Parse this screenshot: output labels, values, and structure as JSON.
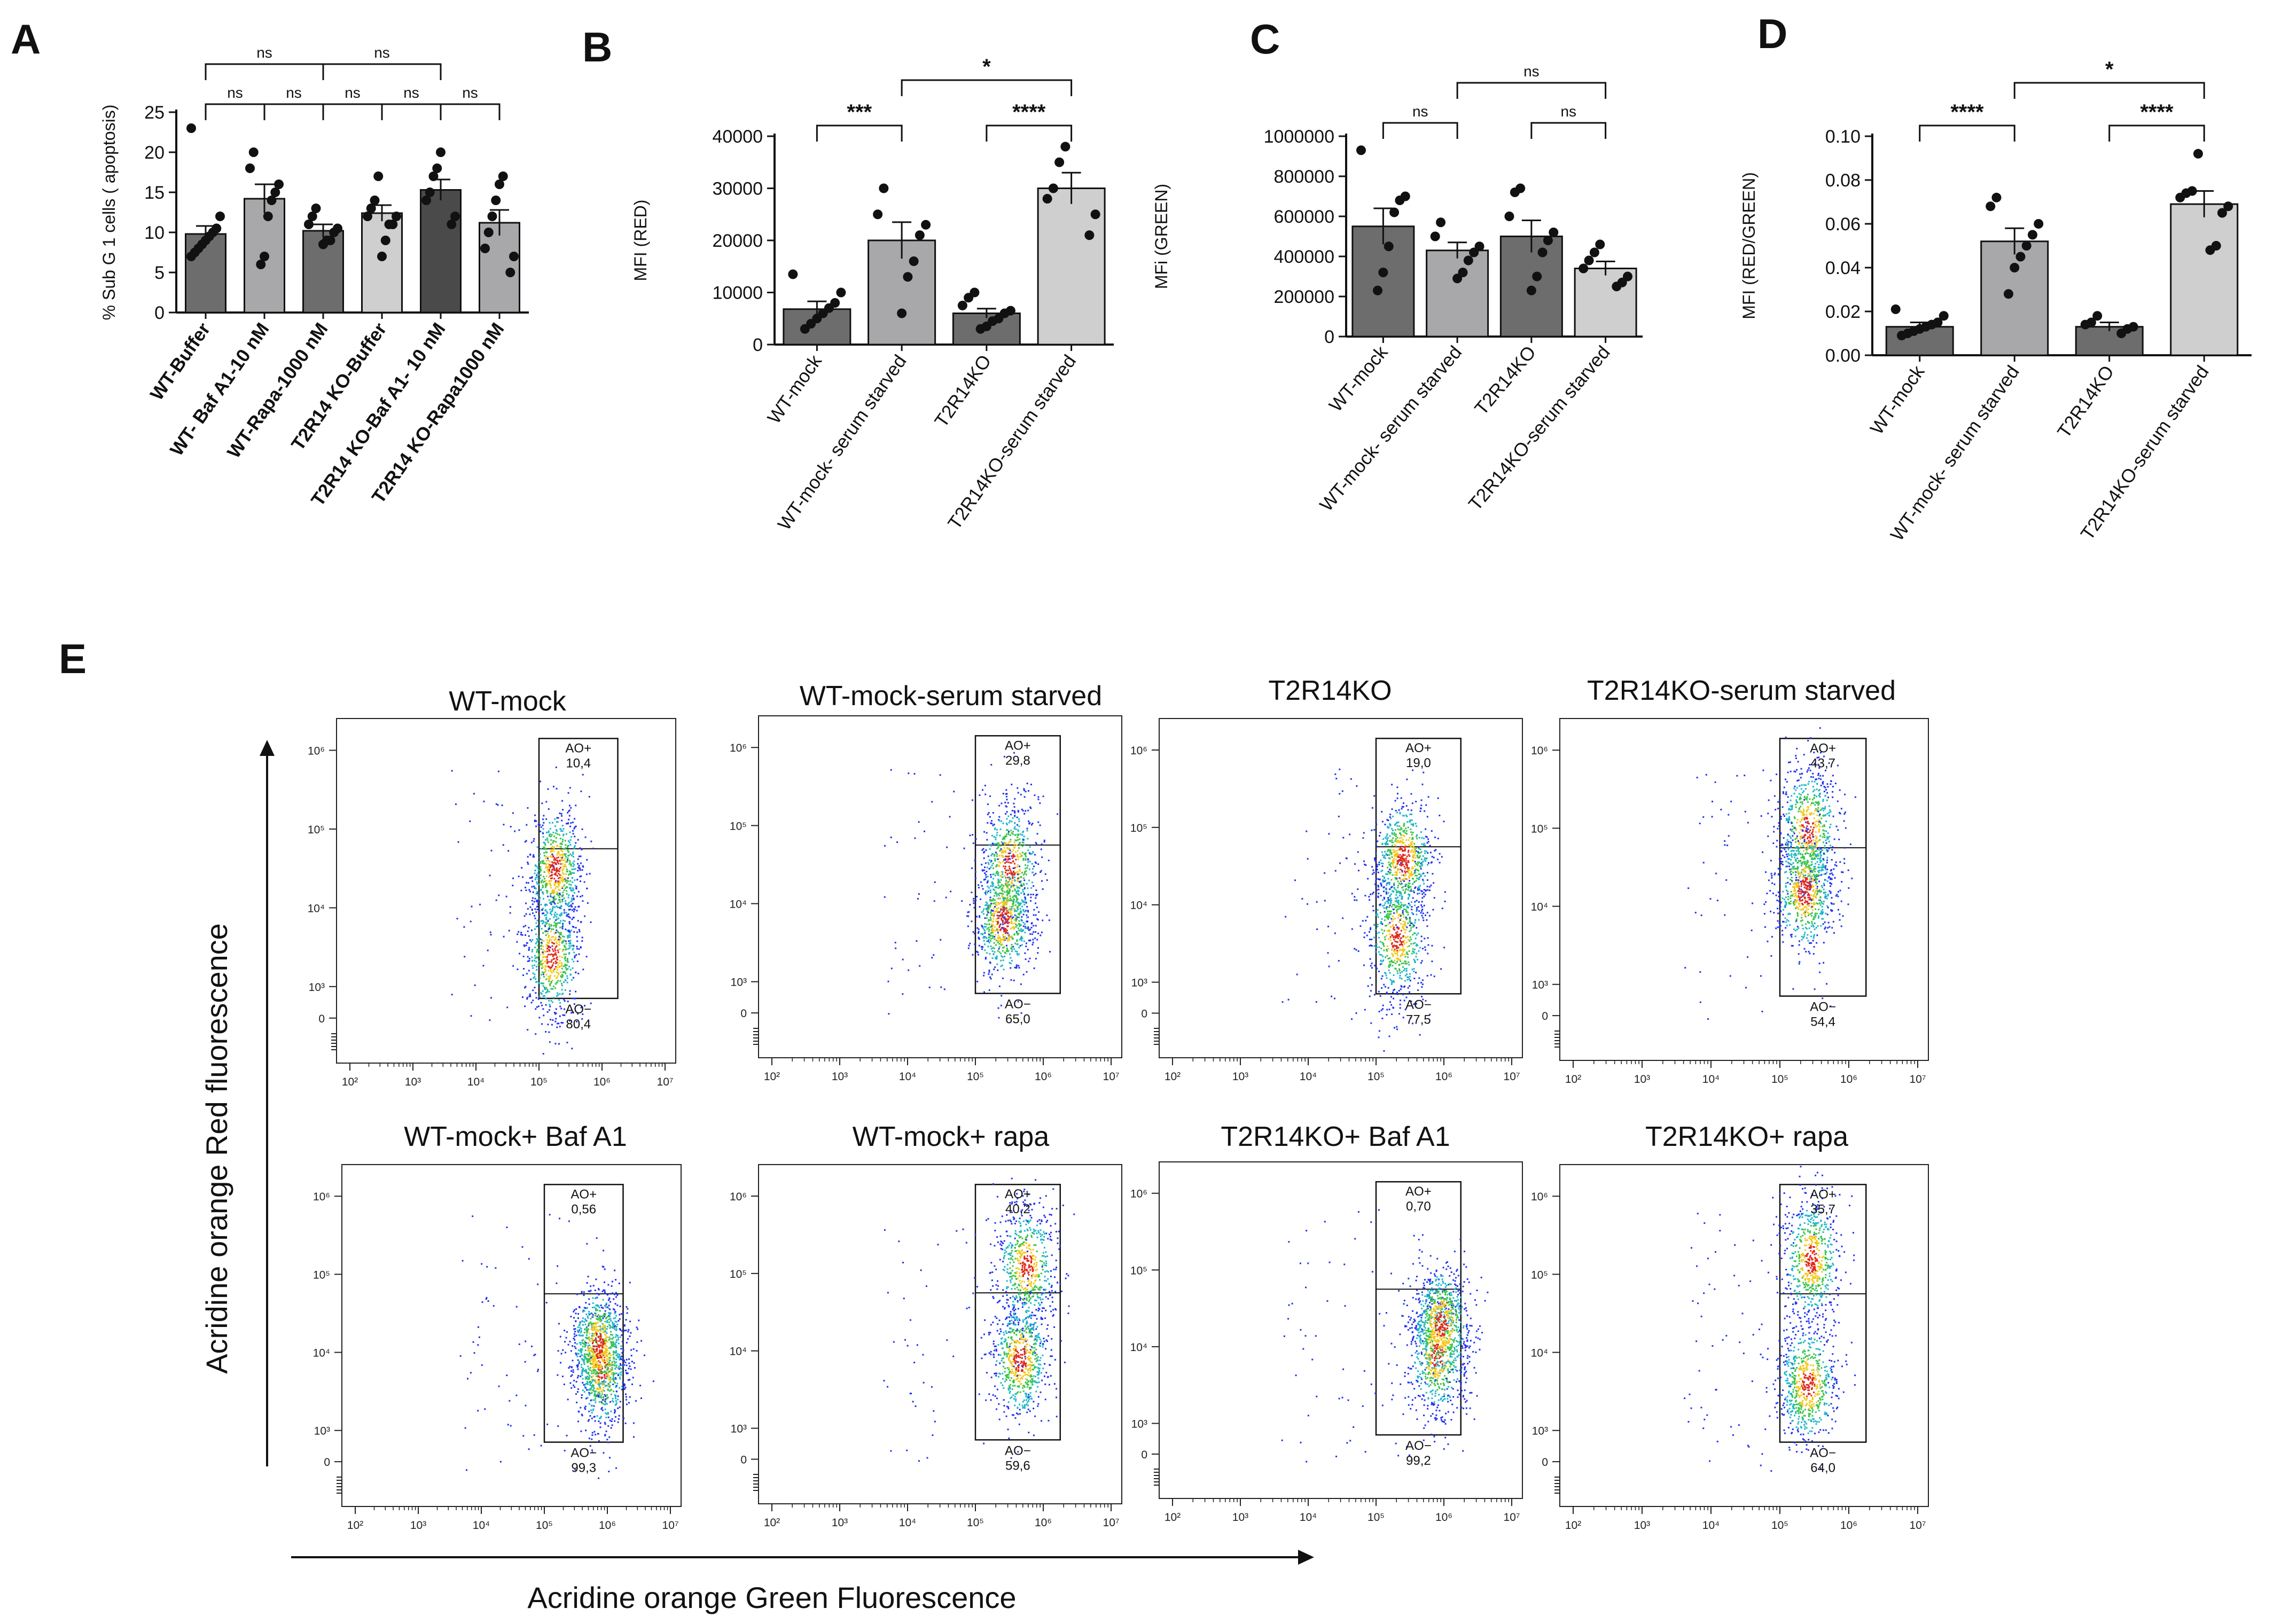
{
  "figure": {
    "panel_letters": [
      "A",
      "B",
      "C",
      "D",
      "E"
    ],
    "e_x_axis_title": "Acridine orange Green Fluorescence",
    "e_y_axis_title": "Acridine orange Red fluorescence"
  },
  "chart_data": [
    {
      "id": "A",
      "type": "bar",
      "ylabel": "% Sub G 1 cells ( apoptosis)",
      "ylim": [
        0,
        25
      ],
      "yticks": [
        0,
        5,
        10,
        15,
        20,
        25
      ],
      "categories": [
        "WT-Buffer",
        "WT- Baf A1-10 nM",
        "WT-Rapa-1000 nM",
        "T2R14 KO-Buffer",
        "T2R14 KO-Baf A1- 10 nM",
        "T2R14 KO-Rapa1000 nM"
      ],
      "values": [
        9.8,
        14.2,
        10.2,
        12.4,
        15.3,
        11.2
      ],
      "errors": [
        1.0,
        1.8,
        0.8,
        1.0,
        1.3,
        1.6
      ],
      "bar_colors": [
        "#6d6d6d",
        "#a8a8ab",
        "#6d6d6d",
        "#cfcfcf",
        "#4a4a4a",
        "#a8a8ab"
      ],
      "points": [
        [
          23,
          12,
          10.5,
          10,
          9.5,
          9,
          8.5,
          8,
          7.5,
          7
        ],
        [
          20,
          18,
          16,
          15,
          14,
          12,
          7,
          6
        ],
        [
          13,
          12,
          11,
          10.5,
          10,
          9,
          9,
          8.5
        ],
        [
          17,
          14,
          13,
          12,
          12,
          11,
          11,
          9,
          7
        ],
        [
          20,
          18,
          17,
          15,
          14,
          12,
          11
        ],
        [
          17,
          16,
          14,
          12,
          10,
          8,
          7,
          5
        ]
      ],
      "significance": [
        {
          "from": 0,
          "to": 1,
          "label": "ns",
          "level": 1
        },
        {
          "from": 1,
          "to": 2,
          "label": "ns",
          "level": 1
        },
        {
          "from": 2,
          "to": 3,
          "label": "ns",
          "level": 1
        },
        {
          "from": 3,
          "to": 4,
          "label": "ns",
          "level": 1
        },
        {
          "from": 4,
          "to": 5,
          "label": "ns",
          "level": 1
        },
        {
          "from": 0,
          "to": 2,
          "label": "ns",
          "level": 2
        },
        {
          "from": 2,
          "to": 4,
          "label": "ns",
          "level": 2
        }
      ]
    },
    {
      "id": "B",
      "type": "bar",
      "ylabel": "MFI (RED)",
      "ylim": [
        0,
        40000
      ],
      "yticks": [
        0,
        10000,
        20000,
        30000,
        40000
      ],
      "categories": [
        "WT-mock",
        "WT-mock- serum starved",
        "T2R14KO",
        "T2R14KO-serum starved"
      ],
      "values": [
        6800,
        20000,
        6000,
        30000
      ],
      "errors": [
        1500,
        3500,
        900,
        3000
      ],
      "bar_colors": [
        "#6d6d6d",
        "#a8a8ab",
        "#6d6d6d",
        "#cfcfcf"
      ],
      "points": [
        [
          13500,
          10000,
          8000,
          7000,
          6000,
          5000,
          4000,
          3000
        ],
        [
          30000,
          25000,
          23000,
          21000,
          16000,
          13000,
          6000
        ],
        [
          10000,
          9000,
          7500,
          6500,
          6000,
          5000,
          4500,
          3500,
          3000
        ],
        [
          38000,
          35000,
          30000,
          28000,
          25000,
          21000
        ]
      ],
      "significance": [
        {
          "from": 0,
          "to": 1,
          "label": "***",
          "level": 1
        },
        {
          "from": 2,
          "to": 3,
          "label": "****",
          "level": 1
        },
        {
          "from": 1,
          "to": 3,
          "label": "*",
          "level": 2
        }
      ]
    },
    {
      "id": "C",
      "type": "bar",
      "ylabel": "MFi (GREEN)",
      "ylim": [
        0,
        1000000
      ],
      "yticks": [
        0,
        200000,
        400000,
        600000,
        800000,
        1000000
      ],
      "categories": [
        "WT-mock",
        "WT-mock- serum starved",
        "T2R14KO",
        "T2R14KO-serum starved"
      ],
      "values": [
        550000,
        430000,
        500000,
        340000
      ],
      "errors": [
        90000,
        40000,
        80000,
        35000
      ],
      "bar_colors": [
        "#6d6d6d",
        "#a8a8ab",
        "#6d6d6d",
        "#cfcfcf"
      ],
      "points": [
        [
          930000,
          700000,
          680000,
          620000,
          450000,
          320000,
          230000
        ],
        [
          570000,
          500000,
          450000,
          420000,
          380000,
          320000,
          290000
        ],
        [
          740000,
          720000,
          600000,
          520000,
          480000,
          420000,
          300000,
          230000
        ],
        [
          460000,
          420000,
          380000,
          340000,
          300000,
          270000,
          250000
        ]
      ],
      "significance": [
        {
          "from": 0,
          "to": 1,
          "label": "ns",
          "level": 1
        },
        {
          "from": 2,
          "to": 3,
          "label": "ns",
          "level": 1
        },
        {
          "from": 1,
          "to": 3,
          "label": "ns",
          "level": 2
        }
      ]
    },
    {
      "id": "D",
      "type": "bar",
      "ylabel": "MFI (RED/GREEN)",
      "ylim": [
        0,
        0.1
      ],
      "yticks": [
        0.0,
        0.02,
        0.04,
        0.06,
        0.08,
        0.1
      ],
      "categories": [
        "WT-mock",
        "WT-mock- serum starved",
        "T2R14KO",
        "T2R14KO-serum starved"
      ],
      "values": [
        0.013,
        0.052,
        0.013,
        0.069
      ],
      "errors": [
        0.002,
        0.006,
        0.002,
        0.006
      ],
      "bar_colors": [
        "#6d6d6d",
        "#a8a8ab",
        "#6d6d6d",
        "#cfcfcf"
      ],
      "points": [
        [
          0.021,
          0.018,
          0.015,
          0.014,
          0.013,
          0.012,
          0.011,
          0.01,
          0.009
        ],
        [
          0.072,
          0.068,
          0.06,
          0.055,
          0.05,
          0.045,
          0.04,
          0.028
        ],
        [
          0.018,
          0.015,
          0.014,
          0.013,
          0.012,
          0.01
        ],
        [
          0.092,
          0.075,
          0.074,
          0.072,
          0.068,
          0.065,
          0.05,
          0.048
        ]
      ],
      "significance": [
        {
          "from": 0,
          "to": 1,
          "label": "****",
          "level": 1
        },
        {
          "from": 2,
          "to": 3,
          "label": "****",
          "level": 1
        },
        {
          "from": 1,
          "to": 3,
          "label": "*",
          "level": 2
        }
      ]
    },
    {
      "id": "E",
      "type": "scatter",
      "x_ticks": [
        "10²",
        "10³",
        "10⁴",
        "10⁵",
        "10⁶",
        "10⁷"
      ],
      "y_ticks": [
        "0",
        "10³",
        "10⁴",
        "10⁵",
        "10⁶"
      ],
      "gate_pos_label": "AO+",
      "gate_neg_label": "AO−",
      "plots": [
        {
          "title": "WT-mock",
          "ao_pos": "10,4",
          "ao_neg": "80,4",
          "pop": [
            {
              "x": 5.2,
              "y": 3.4
            },
            {
              "x": 5.25,
              "y": 4.5
            }
          ]
        },
        {
          "title": "WT-mock-serum starved",
          "ao_pos": "29,8",
          "ao_neg": "65,0",
          "pop": [
            {
              "x": 5.5,
              "y": 4.5
            },
            {
              "x": 5.4,
              "y": 3.8
            }
          ]
        },
        {
          "title": "T2R14KO",
          "ao_pos": "19,0",
          "ao_neg": "77,5",
          "pop": [
            {
              "x": 5.3,
              "y": 3.6
            },
            {
              "x": 5.4,
              "y": 4.6
            }
          ]
        },
        {
          "title": "T2R14KO-serum starved",
          "ao_pos": "43,7",
          "ao_neg": "54,4",
          "pop": [
            {
              "x": 5.4,
              "y": 5.0
            },
            {
              "x": 5.35,
              "y": 4.2
            }
          ]
        },
        {
          "title": "WT-mock+ Baf A1",
          "ao_pos": "0,56",
          "ao_neg": "99,3",
          "pop": [
            {
              "x": 5.9,
              "y": 3.8
            },
            {
              "x": 5.85,
              "y": 4.1
            }
          ]
        },
        {
          "title": "WT-mock+ rapa",
          "ao_pos": "40,2",
          "ao_neg": "59,6",
          "pop": [
            {
              "x": 5.75,
              "y": 5.1
            },
            {
              "x": 5.65,
              "y": 3.9
            }
          ]
        },
        {
          "title": "T2R14KO+ Baf A1",
          "ao_pos": "0,70",
          "ao_neg": "99,2",
          "pop": [
            {
              "x": 5.9,
              "y": 3.9
            },
            {
              "x": 5.95,
              "y": 4.3
            }
          ]
        },
        {
          "title": "T2R14KO+ rapa",
          "ao_pos": "35,7",
          "ao_neg": "64,0",
          "pop": [
            {
              "x": 5.45,
              "y": 5.2
            },
            {
              "x": 5.4,
              "y": 3.6
            }
          ]
        }
      ]
    }
  ]
}
